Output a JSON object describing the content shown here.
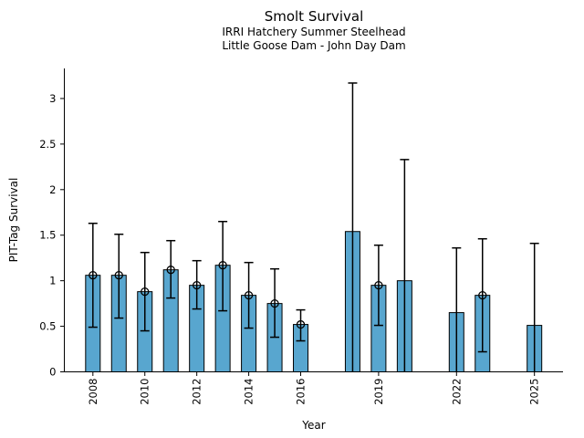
{
  "colors": {
    "bar_fill": "#58A6CF",
    "bar_edge": "#000000",
    "axis": "#000000",
    "background": "#ffffff"
  },
  "chart_data": {
    "type": "bar",
    "title": "Smolt Survival",
    "subtitle1": "IRRI Hatchery Summer Steelhead",
    "subtitle2": "Little Goose Dam - John Day Dam",
    "xlabel": "Year",
    "ylabel": "PIT-Tag Survival",
    "xlim": [
      2006.9,
      2026.1
    ],
    "ylim": [
      0,
      3.33
    ],
    "grid": false,
    "legend": "none",
    "xticks": [
      2008,
      2010,
      2012,
      2014,
      2016,
      2019,
      2022,
      2025
    ],
    "xtick_labels": [
      "2008",
      "2010",
      "2012",
      "2014",
      "2016",
      "2019",
      "2022",
      "2025"
    ],
    "yticks": [
      0,
      0.5,
      1,
      1.5,
      2,
      2.5,
      3
    ],
    "ytick_labels": [
      "0",
      "0.5",
      "1",
      "1.5",
      "2",
      "2.5",
      "3"
    ],
    "bars": [
      {
        "year": 2008,
        "value": 1.06,
        "ci_low": 0.49,
        "ci_high": 1.63,
        "marker": true
      },
      {
        "year": 2009,
        "value": 1.06,
        "ci_low": 0.59,
        "ci_high": 1.51,
        "marker": true
      },
      {
        "year": 2010,
        "value": 0.88,
        "ci_low": 0.45,
        "ci_high": 1.31,
        "marker": true
      },
      {
        "year": 2011,
        "value": 1.12,
        "ci_low": 0.81,
        "ci_high": 1.44,
        "marker": true
      },
      {
        "year": 2012,
        "value": 0.95,
        "ci_low": 0.69,
        "ci_high": 1.22,
        "marker": true
      },
      {
        "year": 2013,
        "value": 1.17,
        "ci_low": 0.67,
        "ci_high": 1.65,
        "marker": true
      },
      {
        "year": 2014,
        "value": 0.84,
        "ci_low": 0.48,
        "ci_high": 1.2,
        "marker": true
      },
      {
        "year": 2015,
        "value": 0.75,
        "ci_low": 0.38,
        "ci_high": 1.13,
        "marker": true
      },
      {
        "year": 2016,
        "value": 0.52,
        "ci_low": 0.34,
        "ci_high": 0.68,
        "marker": true
      },
      {
        "year": 2018,
        "value": 1.54,
        "ci_low": 0.0,
        "ci_high": 3.17,
        "marker": false
      },
      {
        "year": 2019,
        "value": 0.95,
        "ci_low": 0.51,
        "ci_high": 1.39,
        "marker": true
      },
      {
        "year": 2020,
        "value": 1.0,
        "ci_low": 0.0,
        "ci_high": 2.33,
        "marker": false
      },
      {
        "year": 2022,
        "value": 0.65,
        "ci_low": 0.0,
        "ci_high": 1.36,
        "marker": false
      },
      {
        "year": 2023,
        "value": 0.84,
        "ci_low": 0.22,
        "ci_high": 1.46,
        "marker": true
      },
      {
        "year": 2025,
        "value": 0.51,
        "ci_low": 0.0,
        "ci_high": 1.41,
        "marker": false
      }
    ]
  }
}
